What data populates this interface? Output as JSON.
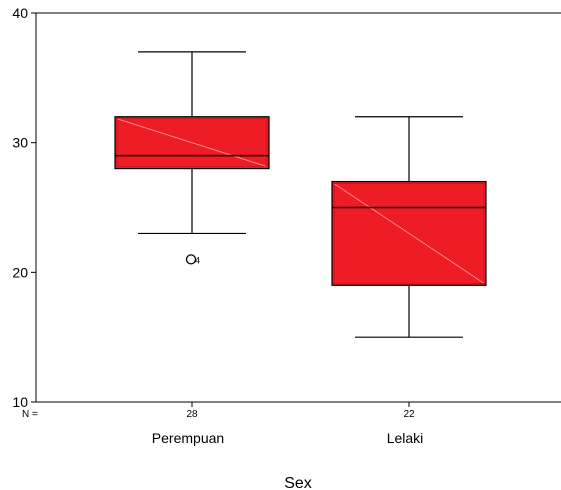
{
  "chart_data": {
    "type": "boxplot",
    "xlabel": "Sex",
    "ylabel": "",
    "ylim": [
      10,
      40
    ],
    "yticks": [
      10,
      20,
      30,
      40
    ],
    "n_label": "N =",
    "box_color": "#ee1c24",
    "categories": [
      {
        "label": "Perempuan",
        "n": "28",
        "min": 23,
        "q1": 28,
        "median": 29,
        "q3": 32,
        "max": 37,
        "outliers": [
          21
        ],
        "outlier_ids": [
          "4"
        ]
      },
      {
        "label": "Lelaki",
        "n": "22",
        "min": 15,
        "q1": 19,
        "median": 25,
        "q3": 27,
        "max": 32,
        "outliers": [],
        "outlier_ids": []
      }
    ]
  }
}
